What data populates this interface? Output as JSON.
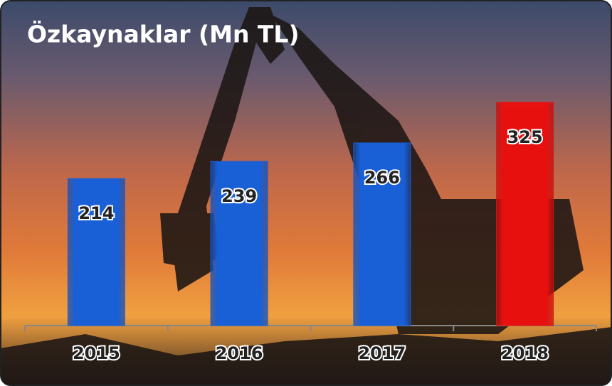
{
  "chart_data": {
    "type": "bar",
    "title": "Özkaynaklar (Mn TL)",
    "categories": [
      "2015",
      "2016",
      "2017",
      "2018"
    ],
    "values": [
      214,
      239,
      266,
      325
    ],
    "colors": [
      "#1a5fd6",
      "#1a5fd6",
      "#1a5fd6",
      "#e8110f"
    ]
  }
}
